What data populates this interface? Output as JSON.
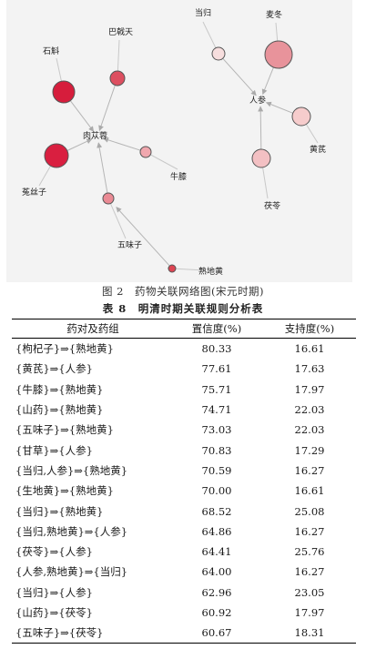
{
  "figure": {
    "caption": "图 2　药物关联网络图(宋元时期)",
    "nodes": [
      {
        "id": "danggui",
        "label": "当归",
        "fill": "#f7dede"
      },
      {
        "id": "maidong",
        "label": "麦冬",
        "fill": "#e8939b"
      },
      {
        "id": "renshen",
        "label": "人参",
        "fill": "none"
      },
      {
        "id": "huangqi",
        "label": "黄芪",
        "fill": "#f6cccc"
      },
      {
        "id": "fuling",
        "label": "茯苓",
        "fill": "#f3c0c3"
      },
      {
        "id": "shihu",
        "label": "石斛",
        "fill": "#d61d3c"
      },
      {
        "id": "bajitian",
        "label": "巴戟天",
        "fill": "#dd4f60"
      },
      {
        "id": "roucongrong",
        "label": "肉苁蓉",
        "fill": "none"
      },
      {
        "id": "tusizi",
        "label": "菟丝子",
        "fill": "#d91f40"
      },
      {
        "id": "niuxi",
        "label": "牛膝",
        "fill": "#f0a7ae"
      },
      {
        "id": "wuweizi",
        "label": "五味子",
        "fill": "#ea8a94"
      },
      {
        "id": "shudihuang",
        "label": "熟地黄",
        "fill": "#dd4452"
      }
    ]
  },
  "table": {
    "caption": "表 8　明清时期关联规则分析表",
    "headers": [
      "药对及药组",
      "置信度(%)",
      "支持度(%)"
    ],
    "rows": [
      {
        "pair": "{枸杞子}⇒{熟地黄}",
        "confidence": "80.33",
        "support": "16.61"
      },
      {
        "pair": "{黄芪}⇒{人参}",
        "confidence": "77.61",
        "support": "17.63"
      },
      {
        "pair": "{牛膝}⇒{熟地黄}",
        "confidence": "75.71",
        "support": "17.97"
      },
      {
        "pair": "{山药}⇒{熟地黄}",
        "confidence": "74.71",
        "support": "22.03"
      },
      {
        "pair": "{五味子}⇒{熟地黄}",
        "confidence": "73.03",
        "support": "22.03"
      },
      {
        "pair": "{甘草}⇒{人参}",
        "confidence": "70.83",
        "support": "17.29"
      },
      {
        "pair": "{当归,人参}⇒{熟地黄}",
        "confidence": "70.59",
        "support": "16.27"
      },
      {
        "pair": "{生地黄}⇒{熟地黄}",
        "confidence": "70.00",
        "support": "16.61"
      },
      {
        "pair": "{当归}⇒{熟地黄}",
        "confidence": "68.52",
        "support": "25.08"
      },
      {
        "pair": "{当归,熟地黄}⇒{人参}",
        "confidence": "64.86",
        "support": "16.27"
      },
      {
        "pair": "{茯苓}⇒{人参}",
        "confidence": "64.41",
        "support": "25.76"
      },
      {
        "pair": "{人参,熟地黄}⇒{当归}",
        "confidence": "64.00",
        "support": "16.27"
      },
      {
        "pair": "{当归}⇒{人参}",
        "confidence": "62.96",
        "support": "23.05"
      },
      {
        "pair": "{山药}⇒{茯苓}",
        "confidence": "60.92",
        "support": "17.97"
      },
      {
        "pair": "{五味子}⇒{茯苓}",
        "confidence": "60.67",
        "support": "18.31"
      }
    ]
  }
}
